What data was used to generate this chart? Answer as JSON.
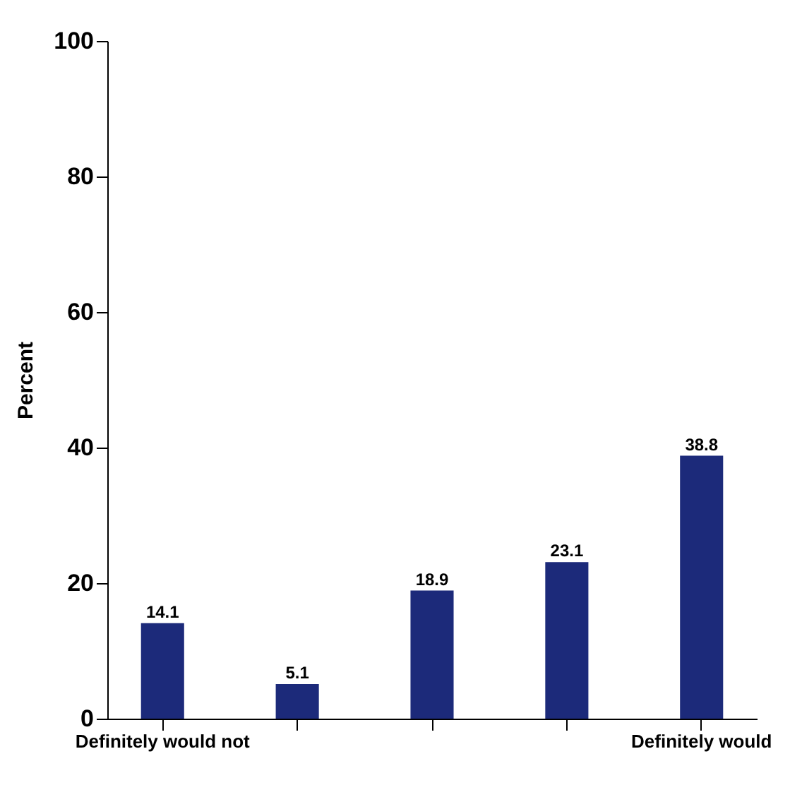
{
  "chart_data": {
    "type": "bar",
    "ylabel": "Percent",
    "categories": [
      "Definitely would not",
      null,
      null,
      null,
      "Definitely would"
    ],
    "values": [
      14.1,
      5.1,
      18.9,
      23.1,
      38.8
    ],
    "color": "#1c2a7a",
    "ylim": [
      0,
      100
    ],
    "yticks": [
      0,
      20,
      40,
      60,
      80,
      100
    ],
    "grid": false,
    "data_labels": true
  }
}
